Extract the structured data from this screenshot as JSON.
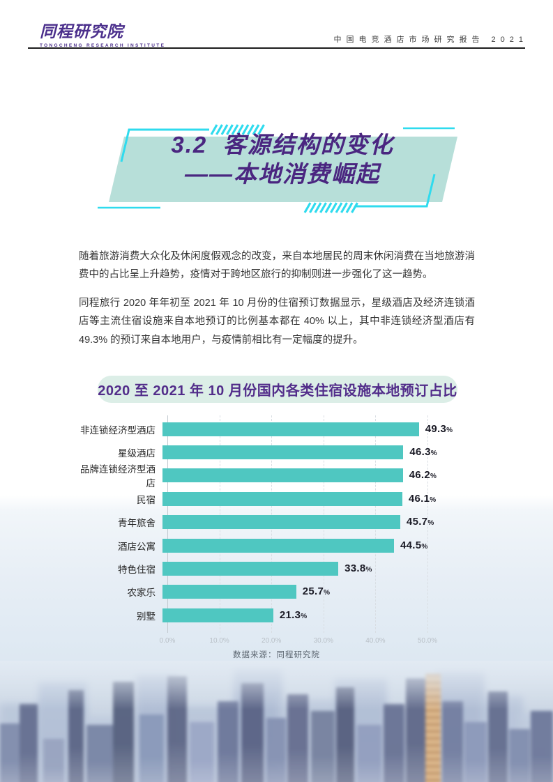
{
  "header": {
    "logo_title": "同程研究院",
    "logo_subtitle": "TONGCHENG RESEARCH INSTITUTE",
    "report_title": "中国电竞酒店市场研究报告 2021"
  },
  "section_banner": {
    "line1": "3.2  客源结构的变化",
    "line2": "——本地消费崛起"
  },
  "paragraphs": {
    "p1": "随着旅游消费大众化及休闲度假观念的改变，来自本地居民的周末休闲消费在当地旅游消费中的占比呈上升趋势，疫情对于跨地区旅行的抑制则进一步强化了这一趋势。",
    "p2": "同程旅行 2020 年年初至 2021 年 10 月份的住宿预订数据显示，星级酒店及经济连锁酒店等主流住宿设施来自本地预订的比例基本都在 40% 以上，其中非连锁经济型酒店有 49.3% 的预订来自本地用户，与疫情前相比有一定幅度的提升。"
  },
  "chart_data": {
    "type": "bar",
    "orientation": "horizontal",
    "title": "2020 至 2021 年 10 月份国内各类住宿设施本地预订占比",
    "categories": [
      "非连锁经济型酒店",
      "星级酒店",
      "品牌连锁经济型酒店",
      "民宿",
      "青年旅舍",
      "酒店公寓",
      "特色住宿",
      "农家乐",
      "别墅"
    ],
    "values": [
      49.3,
      46.3,
      46.2,
      46.1,
      45.7,
      44.5,
      33.8,
      25.7,
      21.3
    ],
    "percent_suffix": "%",
    "x_ticks": [
      "0.0%",
      "10.0%",
      "20.0%",
      "30.0%",
      "40.0%",
      "50.0%"
    ],
    "xlim": [
      0,
      50
    ],
    "grid": "vertical-dashed",
    "bar_color": "#4FC7C1",
    "source": "数据来源：同程研究院"
  },
  "colors": {
    "brand_purple": "#4B2F8C",
    "title_purple": "#4A2680",
    "decoration_cyan": "#2FDBEE",
    "banner_fill": "#B7DFD9",
    "pill_bg": "#DCEEE7",
    "bar_teal": "#4FC7C1"
  }
}
